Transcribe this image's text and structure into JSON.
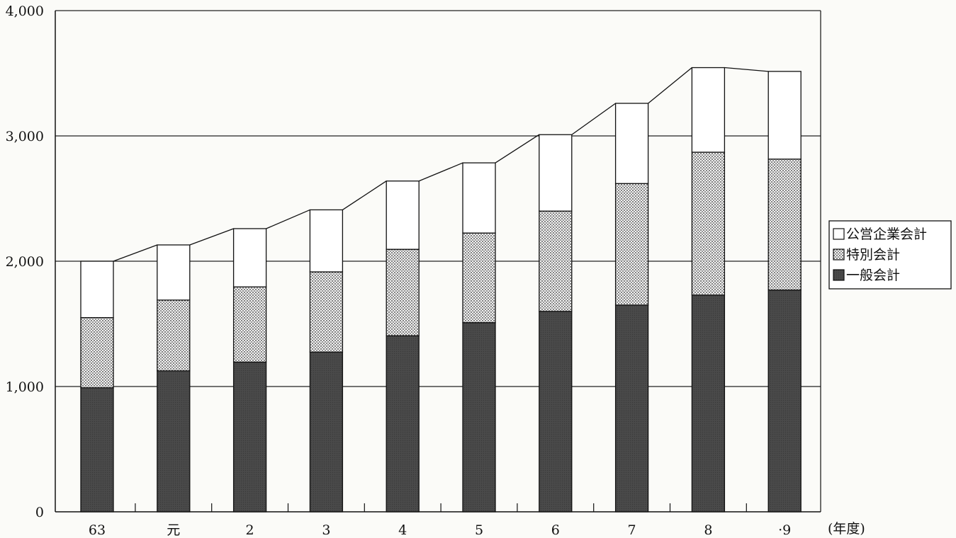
{
  "chart_data": {
    "type": "bar",
    "stacked": true,
    "categories": [
      "63",
      "元",
      "2",
      "3",
      "4",
      "5",
      "6",
      "7",
      "8",
      "·9"
    ],
    "x_unit_label": "(年度)",
    "series": [
      {
        "name": "一般会計",
        "values": [
          990,
          1125,
          1195,
          1275,
          1405,
          1510,
          1600,
          1650,
          1730,
          1770
        ],
        "color": "#4d4d4d",
        "fill": "dark"
      },
      {
        "name": "特別会計",
        "values": [
          560,
          565,
          600,
          640,
          690,
          715,
          800,
          970,
          1140,
          1045
        ],
        "color": "#c8c8c8",
        "fill": "dotted"
      },
      {
        "name": "公営企業会計",
        "values": [
          450,
          440,
          465,
          495,
          545,
          560,
          610,
          640,
          675,
          700
        ],
        "color": "#ffffff",
        "fill": "white"
      }
    ],
    "ylim": [
      0,
      4000
    ],
    "yticks": [
      0,
      1000,
      2000,
      3000,
      4000
    ],
    "ytick_labels": [
      "0",
      "1,000",
      "2,000",
      "3,000",
      "4,000"
    ],
    "grid": true,
    "legend_position": "right",
    "legend_order": [
      "公営企業会計",
      "特別会計",
      "一般会計"
    ]
  }
}
